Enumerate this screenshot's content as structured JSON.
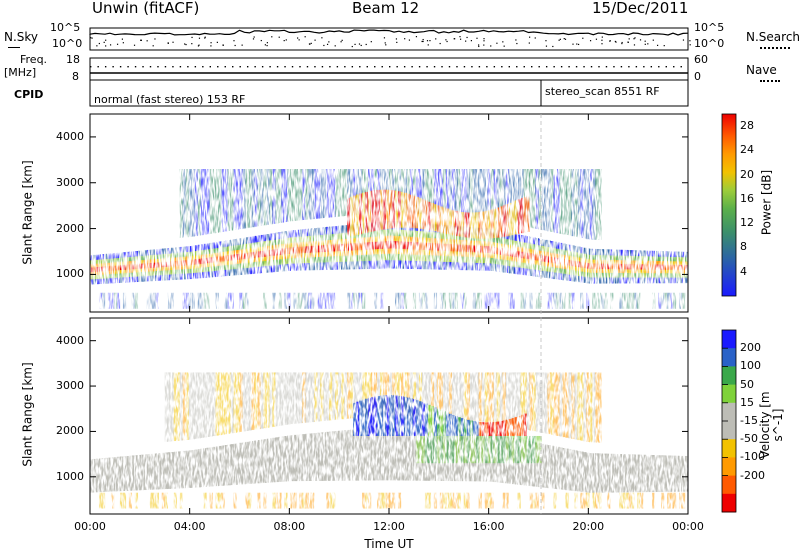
{
  "header": {
    "station": "Unwin (fitACF)",
    "beam": "Beam 12",
    "date": "15/Dec/2011"
  },
  "scan_panel": {
    "left_label_1": "N.Sky",
    "left_ticks": [
      "10^5",
      "10^0"
    ],
    "right_label_1": "N.Search",
    "right_ticks": [
      "10^5",
      "10^0"
    ]
  },
  "freq_panel": {
    "left_label_1": "Freq.",
    "left_label_2": "[MHz]",
    "left_ticks": [
      "18",
      "8"
    ],
    "right_label": "Nave",
    "right_ticks": [
      "60",
      "0"
    ]
  },
  "cpid_panel": {
    "label": "CPID",
    "program_1": "normal (fast stereo) 153 RF",
    "program_2": "stereo_scan 8551 RF"
  },
  "colors": {
    "power_scale": [
      "#1a1aff",
      "#2a62a8",
      "#3b8f6b",
      "#5bb04a",
      "#9ccc3a",
      "#f2c200",
      "#ff9a00",
      "#ff5a00",
      "#ee0000"
    ],
    "velocity_scale": [
      "#ee0000",
      "#ff5a00",
      "#ff9a00",
      "#f2c200",
      "#bdbdb6",
      "#bdbdb6",
      "#7fd23a",
      "#3aa84a",
      "#2a62c8",
      "#1a1aff"
    ],
    "ground_scatter": "#bdbdb6"
  },
  "chart_data": [
    {
      "type": "heatmap",
      "title": "Power",
      "xlabel": "",
      "ylabel": "Slant Range [km]",
      "x_ticks": [
        "00:00",
        "04:00",
        "08:00",
        "12:00",
        "16:00",
        "20:00",
        "00:00"
      ],
      "xlim_hours": [
        0,
        24
      ],
      "y_ticks": [
        "1000",
        "2000",
        "3000",
        "4000"
      ],
      "ylim": [
        180,
        4500
      ],
      "colorbar": {
        "label": "Power [dB]",
        "ticks": [
          "4",
          "8",
          "12",
          "16",
          "20",
          "24",
          "28"
        ],
        "range": [
          0,
          30
        ]
      },
      "echo_band_km": [
        {
          "hour": 0,
          "center": 1100,
          "width": 320
        },
        {
          "hour": 4,
          "center": 1260,
          "width": 360
        },
        {
          "hour": 8,
          "center": 1520,
          "width": 440
        },
        {
          "hour": 12,
          "center": 1650,
          "width": 520
        },
        {
          "hour": 16,
          "center": 1540,
          "width": 460
        },
        {
          "hour": 20,
          "center": 1180,
          "width": 380
        },
        {
          "hour": 24,
          "center": 1150,
          "width": 340
        }
      ]
    },
    {
      "type": "heatmap",
      "title": "Velocity",
      "xlabel": "Time UT",
      "ylabel": "Slant Range [km]",
      "x_ticks": [
        "00:00",
        "04:00",
        "08:00",
        "12:00",
        "16:00",
        "20:00",
        "00:00"
      ],
      "xlim_hours": [
        0,
        24
      ],
      "y_ticks": [
        "1000",
        "2000",
        "3000",
        "4000"
      ],
      "ylim": [
        180,
        4500
      ],
      "colorbar": {
        "label": "Velocity [m s^-1]",
        "ticks": [
          "200",
          "100",
          "50",
          "15",
          "-15",
          "-50",
          "-100",
          "-200"
        ],
        "range": [
          -250,
          250
        ]
      }
    }
  ]
}
